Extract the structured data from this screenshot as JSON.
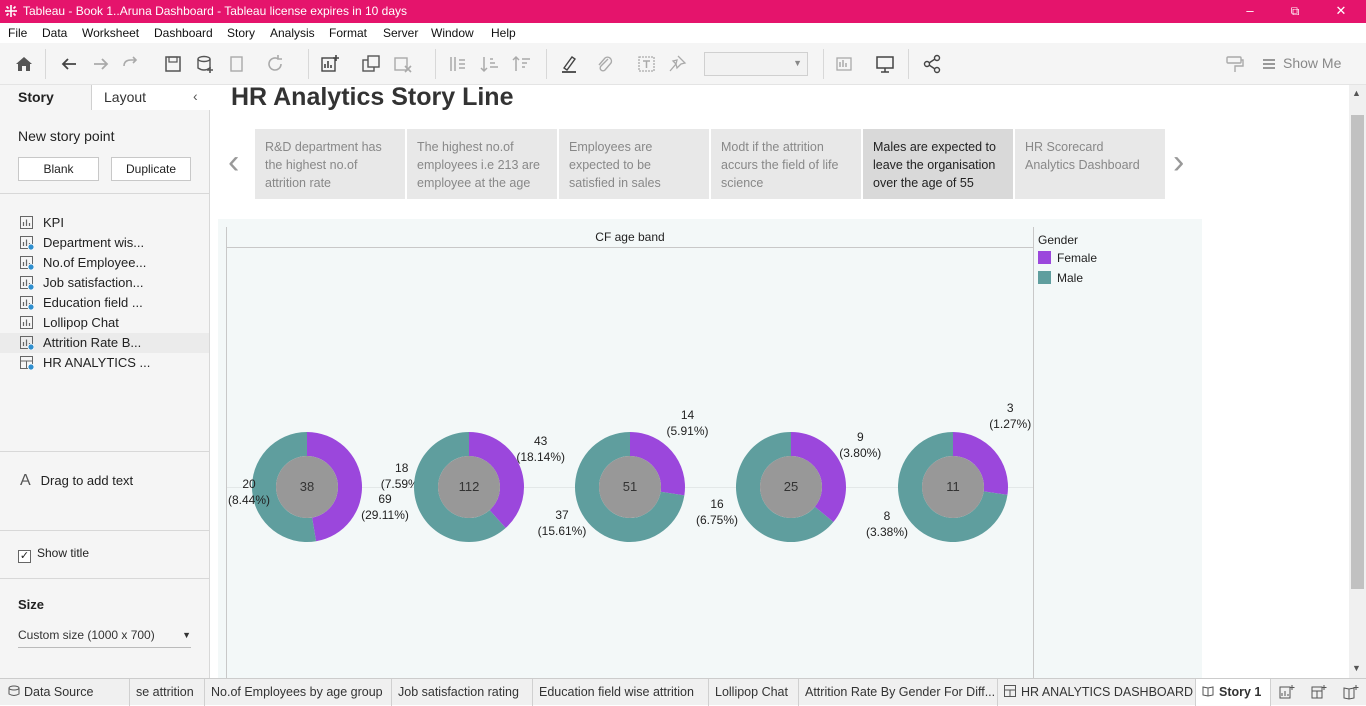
{
  "window": {
    "title": "Tableau - Book 1..Aruna Dashboard - Tableau license expires in 10 days",
    "minimize": "–",
    "restore": "⧉",
    "close": "✕"
  },
  "menu": [
    "File",
    "Data",
    "Worksheet",
    "Dashboard",
    "Story",
    "Analysis",
    "Format",
    "Server",
    "Window",
    "Help"
  ],
  "toolbar": {
    "show_me": "Show Me",
    "icons": [
      "home-icon",
      "undo-icon",
      "redo-icon",
      "replay-icon",
      "save-icon",
      "new-datasource-icon",
      "pause-icon",
      "refresh-icon",
      "new-worksheet-icon",
      "duplicate-icon",
      "clear-icon",
      "swap-icon",
      "sort-asc-icon",
      "sort-desc-icon",
      "highlight-icon",
      "attach-icon",
      "label-icon",
      "pin-icon",
      "fit-icon",
      "presentation-icon",
      "share-icon",
      "format-painter-icon",
      "show-me-icon"
    ]
  },
  "left_panel": {
    "tab_story": "Story",
    "tab_layout": "Layout",
    "collapse": "‹",
    "new_story_point": "New story point",
    "blank": "Blank",
    "duplicate": "Duplicate",
    "sheets": [
      {
        "label": "KPI",
        "icon": "worksheet-icon",
        "used": false
      },
      {
        "label": "Department wis...",
        "icon": "worksheet-icon",
        "used": true
      },
      {
        "label": "No.of Employee...",
        "icon": "worksheet-icon",
        "used": true
      },
      {
        "label": "Job satisfaction...",
        "icon": "worksheet-icon",
        "used": true
      },
      {
        "label": "Education field ...",
        "icon": "worksheet-icon",
        "used": true
      },
      {
        "label": "Lollipop Chat",
        "icon": "worksheet-icon",
        "used": false
      },
      {
        "label": "Attrition Rate B...",
        "icon": "worksheet-icon",
        "used": true,
        "selected": true
      },
      {
        "label": "HR ANALYTICS ...",
        "icon": "dashboard-icon",
        "used": true
      }
    ],
    "drag_text_icon": "A",
    "drag_text": "Drag to add text",
    "show_title_check": "✓",
    "show_title": "Show title",
    "size_label": "Size",
    "size_value": "Custom size (1000 x 700)",
    "size_arrow": "▼"
  },
  "story": {
    "title": "HR Analytics Story Line",
    "prev_arrow": "‹",
    "next_arrow": "›",
    "points": [
      "R&D department has the highest no.of attrition rate",
      "The highest no.of employees i.e 213  are employee at the age",
      "Employees are expected to be satisfied in sales",
      "Modt if the attrition accurs the field of life science",
      "Males are expected to leave the organisation over the age of 55",
      "HR Scorecard Analytics Dashboard"
    ],
    "active_point": 4
  },
  "chart_data": {
    "type": "pie",
    "column_header": "CF age band",
    "legend_title": "Gender",
    "legend_placement": "top-right",
    "colors": {
      "Female": "#9b47dc",
      "Male": "#5f9e9e",
      "center": "#989898"
    },
    "series_names": [
      "Female",
      "Male"
    ],
    "donuts": [
      {
        "total": 38,
        "female": 18,
        "female_pct": "(7.59%)",
        "male": 20,
        "male_pct": "(8.44%)"
      },
      {
        "total": 112,
        "female": 43,
        "female_pct": "(18.14%)",
        "male": 69,
        "male_pct": "(29.11%)"
      },
      {
        "total": 51,
        "female": 14,
        "female_pct": "(5.91%)",
        "male": 37,
        "male_pct": "(15.61%)"
      },
      {
        "total": 25,
        "female": 9,
        "female_pct": "(3.80%)",
        "male": 16,
        "male_pct": "(6.75%)"
      },
      {
        "total": 11,
        "female": 3,
        "female_pct": "(1.27%)",
        "male": 8,
        "male_pct": "(3.38%)"
      }
    ]
  },
  "bottom_tabs": {
    "data_source": "Data Source",
    "tabs": [
      "se attrition",
      "No.of Employees by age group",
      "Job satisfaction rating",
      "Education field wise attrition",
      "Lollipop Chat",
      "Attrition Rate By Gender For Diff...",
      "HR ANALYTICS DASHBOARD",
      "Story 1"
    ]
  }
}
